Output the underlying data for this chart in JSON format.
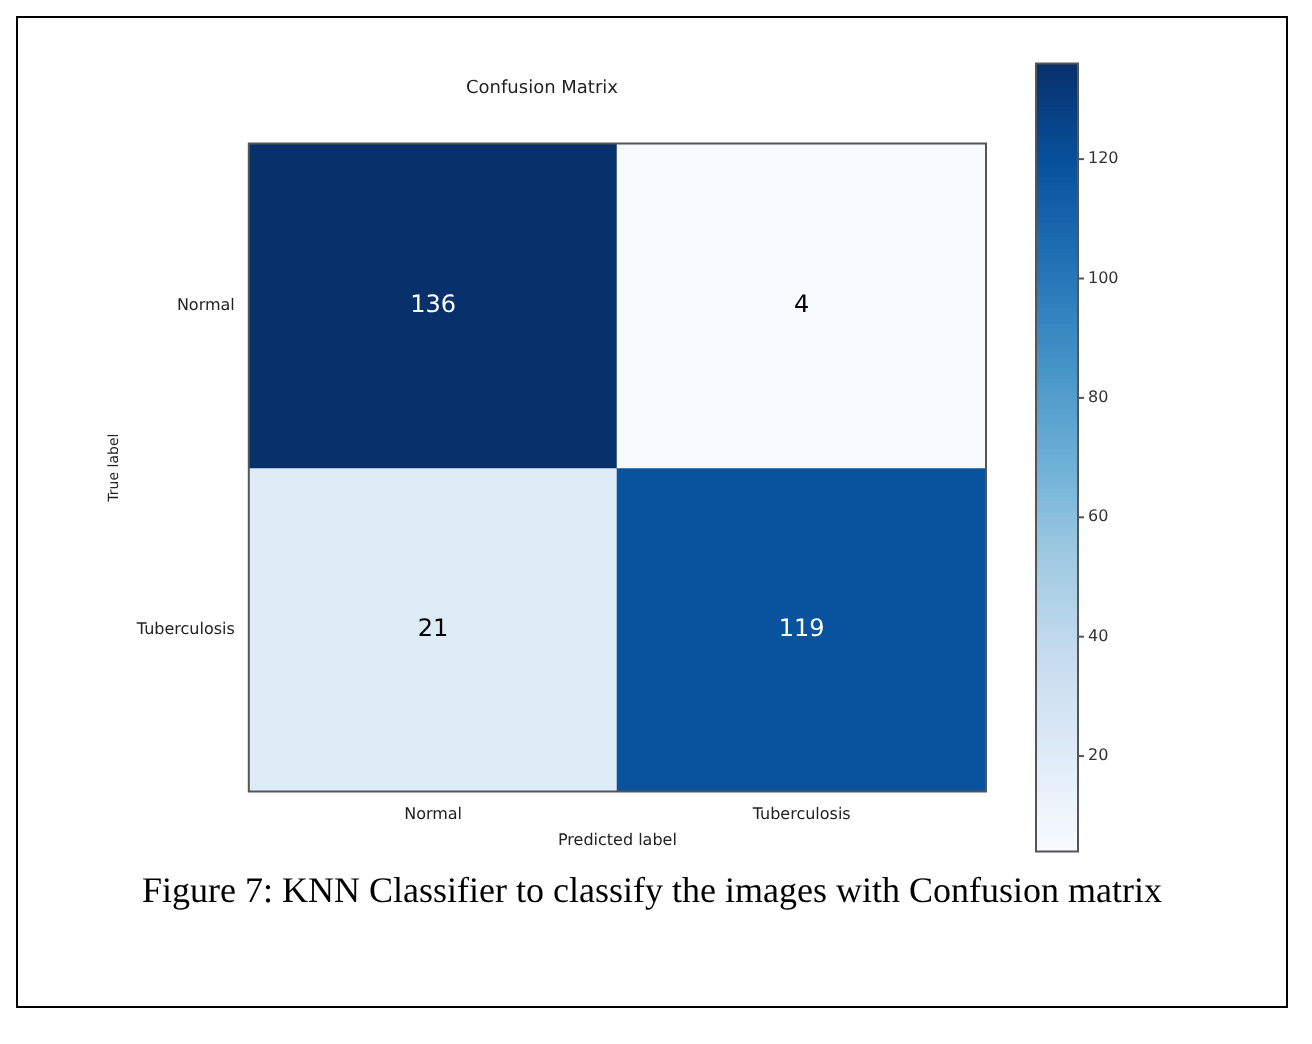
{
  "chart_data": {
    "type": "heatmap",
    "title": "Confusion Matrix",
    "xlabel": "Predicted label",
    "ylabel": "True label",
    "categories": [
      "Normal",
      "Tuberculosis"
    ],
    "y_categories": [
      "Normal",
      "Tuberculosis"
    ],
    "cells": [
      [
        136,
        4
      ],
      [
        21,
        119
      ]
    ],
    "clim": [
      4,
      136
    ],
    "cticks": [
      20,
      40,
      60,
      80,
      100,
      120
    ],
    "data_labels": true,
    "annotations": [
      "Figure 7: KNN Classifier to classify the images with Confusion matrix"
    ]
  }
}
